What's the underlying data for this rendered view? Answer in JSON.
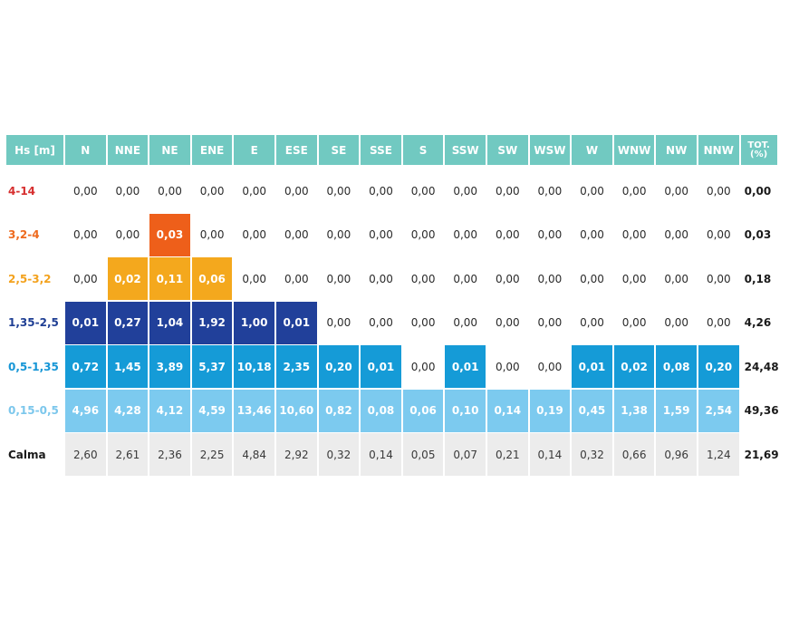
{
  "chart_data": {
    "type": "table",
    "header_first": "Hs [m]",
    "directions": [
      "N",
      "NNE",
      "NE",
      "ENE",
      "E",
      "ESE",
      "SE",
      "SSE",
      "S",
      "SSW",
      "SW",
      "WSW",
      "W",
      "WNW",
      "NW",
      "NNW"
    ],
    "total_header": "TOT. (%)",
    "rows": [
      {
        "label": "4-14",
        "label_color": "#d62e2e",
        "fill": "#e8491d",
        "shaded": [
          0,
          0,
          0,
          0,
          0,
          0,
          0,
          0,
          0,
          0,
          0,
          0,
          0,
          0,
          0,
          0
        ],
        "values": [
          "0,00",
          "0,00",
          "0,00",
          "0,00",
          "0,00",
          "0,00",
          "0,00",
          "0,00",
          "0,00",
          "0,00",
          "0,00",
          "0,00",
          "0,00",
          "0,00",
          "0,00",
          "0,00"
        ],
        "total": "0,00"
      },
      {
        "label": "3,2-4",
        "label_color": "#ee6a1e",
        "fill": "#ee5f1a",
        "shaded": [
          0,
          0,
          1,
          0,
          0,
          0,
          0,
          0,
          0,
          0,
          0,
          0,
          0,
          0,
          0,
          0
        ],
        "values": [
          "0,00",
          "0,00",
          "0,03",
          "0,00",
          "0,00",
          "0,00",
          "0,00",
          "0,00",
          "0,00",
          "0,00",
          "0,00",
          "0,00",
          "0,00",
          "0,00",
          "0,00",
          "0,00"
        ],
        "total": "0,03"
      },
      {
        "label": "2,5-3,2",
        "label_color": "#f3a21e",
        "fill": "#f4a81d",
        "shaded": [
          0,
          1,
          1,
          1,
          0,
          0,
          0,
          0,
          0,
          0,
          0,
          0,
          0,
          0,
          0,
          0
        ],
        "values": [
          "0,00",
          "0,02",
          "0,11",
          "0,06",
          "0,00",
          "0,00",
          "0,00",
          "0,00",
          "0,00",
          "0,00",
          "0,00",
          "0,00",
          "0,00",
          "0,00",
          "0,00",
          "0,00"
        ],
        "total": "0,18"
      },
      {
        "label": "1,35-2,5",
        "label_color": "#1f3f94",
        "fill": "#21409a",
        "shaded": [
          1,
          1,
          1,
          1,
          1,
          1,
          0,
          0,
          0,
          0,
          0,
          0,
          0,
          0,
          0,
          0
        ],
        "values": [
          "0,01",
          "0,27",
          "1,04",
          "1,92",
          "1,00",
          "0,01",
          "0,00",
          "0,00",
          "0,00",
          "0,00",
          "0,00",
          "0,00",
          "0,00",
          "0,00",
          "0,00",
          "0,00"
        ],
        "total": "4,26"
      },
      {
        "label": "0,5-1,35",
        "label_color": "#1696d6",
        "fill": "#159bd7",
        "shaded": [
          1,
          1,
          1,
          1,
          1,
          1,
          1,
          1,
          0,
          1,
          0,
          0,
          1,
          1,
          1,
          1
        ],
        "values": [
          "0,72",
          "1,45",
          "3,89",
          "5,37",
          "10,18",
          "2,35",
          "0,20",
          "0,01",
          "0,00",
          "0,01",
          "0,00",
          "0,00",
          "0,01",
          "0,02",
          "0,08",
          "0,20"
        ],
        "total": "24,48"
      },
      {
        "label": "0,15-0,5",
        "label_color": "#7cc7ec",
        "fill": "#7ccaef",
        "shaded": [
          1,
          1,
          1,
          1,
          1,
          1,
          1,
          1,
          1,
          1,
          1,
          1,
          1,
          1,
          1,
          1
        ],
        "values": [
          "4,96",
          "4,28",
          "4,12",
          "4,59",
          "13,46",
          "10,60",
          "0,82",
          "0,08",
          "0,06",
          "0,10",
          "0,14",
          "0,19",
          "0,45",
          "1,38",
          "1,59",
          "2,54"
        ],
        "total": "49,36"
      },
      {
        "label": "Calma",
        "label_color": "#1a1a1a",
        "fill": "#ececec",
        "shaded": [
          1,
          1,
          1,
          1,
          1,
          1,
          1,
          1,
          1,
          1,
          1,
          1,
          1,
          1,
          1,
          1
        ],
        "plain_fill": true,
        "values": [
          "2,60",
          "2,61",
          "2,36",
          "2,25",
          "4,84",
          "2,92",
          "0,32",
          "0,14",
          "0,05",
          "0,07",
          "0,21",
          "0,14",
          "0,32",
          "0,66",
          "0,96",
          "1,24"
        ],
        "total": "21,69"
      }
    ]
  }
}
